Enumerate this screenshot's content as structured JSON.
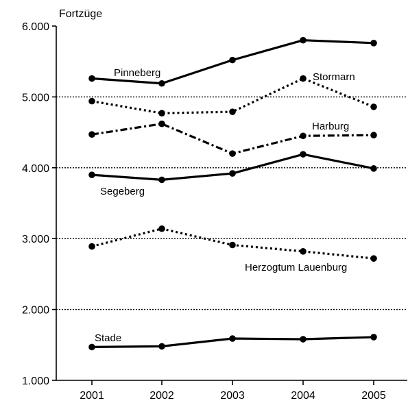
{
  "chart_data": {
    "type": "line",
    "title": "",
    "xlabel": "",
    "ylabel": "Fortzüge",
    "x": [
      "2001",
      "2002",
      "2003",
      "2004",
      "2005"
    ],
    "yticks": [
      "1.000",
      "2.000",
      "3.000",
      "4.000",
      "5.000",
      "6.000"
    ],
    "ylim": [
      1000,
      6000
    ],
    "grid": "horizontal dotted at 2.000, 3.000, 4.000, 5.000",
    "legend": "none (series labelled directly on lines)",
    "series": [
      {
        "name": "Pinneberg",
        "style": "solid",
        "values": [
          5260,
          5190,
          5520,
          5800,
          5760
        ]
      },
      {
        "name": "Stormarn",
        "style": "dotted",
        "values": [
          4940,
          4770,
          4790,
          5260,
          4860
        ]
      },
      {
        "name": "Harburg",
        "style": "dash-dot",
        "values": [
          4470,
          4620,
          4200,
          4450,
          4460
        ]
      },
      {
        "name": "Segeberg",
        "style": "solid",
        "values": [
          3900,
          3830,
          3920,
          4190,
          3990
        ]
      },
      {
        "name": "Herzogtum Lauenburg",
        "style": "dotted",
        "values": [
          2890,
          3140,
          2910,
          2820,
          2720
        ]
      },
      {
        "name": "Stade",
        "style": "solid",
        "values": [
          1470,
          1480,
          1590,
          1580,
          1610
        ]
      }
    ],
    "colors": {
      "line": "#000000",
      "grid": "#000000"
    }
  }
}
